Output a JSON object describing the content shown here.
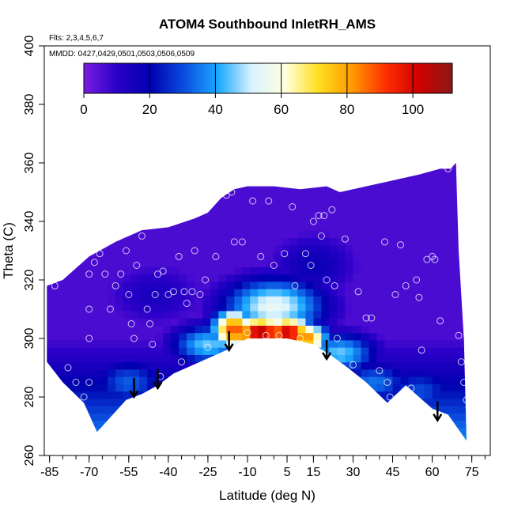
{
  "chart_data": {
    "type": "heatmap",
    "title": "ATOM4 Southbound InletRH_AMS",
    "subtitle_flights": "Flts: 2,3,4,5,6,7",
    "subtitle_dates": "MMDD: 0427,0429,0501,0503,0506,0509",
    "xlabel": "Latitude (deg N)",
    "ylabel": "Theta (C)",
    "xlim": [
      -87,
      82
    ],
    "ylim": [
      260,
      400
    ],
    "x_ticks": [
      -85,
      -70,
      -55,
      -40,
      -25,
      -10,
      5,
      15,
      30,
      45,
      60,
      75
    ],
    "y_ticks": [
      260,
      280,
      300,
      320,
      340,
      360,
      380,
      400
    ],
    "colorbar": {
      "range": [
        0,
        112
      ],
      "ticks": [
        0,
        20,
        40,
        60,
        80,
        100
      ],
      "colors": [
        "#7a1ce0",
        "#2a00c8",
        "#0000b0",
        "#0a4fe0",
        "#1aa8ff",
        "#d8f2ff",
        "#ffffe0",
        "#ffdf20",
        "#ff9a00",
        "#ff3000",
        "#d00000",
        "#8a1818"
      ]
    },
    "field_top_boundary": [
      [
        -86,
        318
      ],
      [
        -80,
        320
      ],
      [
        -70,
        328
      ],
      [
        -60,
        333
      ],
      [
        -50,
        337
      ],
      [
        -40,
        338
      ],
      [
        -30,
        341
      ],
      [
        -25,
        343
      ],
      [
        -20,
        348
      ],
      [
        -15,
        351
      ],
      [
        -10,
        352
      ],
      [
        0,
        352
      ],
      [
        10,
        351
      ],
      [
        20,
        352
      ],
      [
        25,
        350
      ],
      [
        35,
        352
      ],
      [
        45,
        354
      ],
      [
        55,
        356
      ],
      [
        63,
        358
      ],
      [
        67,
        358
      ],
      [
        69,
        360
      ],
      [
        70,
        330
      ],
      [
        72,
        300
      ],
      [
        73,
        265
      ]
    ],
    "field_bottom_boundary": [
      [
        73,
        265
      ],
      [
        66,
        274
      ],
      [
        60,
        276
      ],
      [
        50,
        284
      ],
      [
        43,
        278
      ],
      [
        35,
        285
      ],
      [
        28,
        290
      ],
      [
        22,
        294
      ],
      [
        15,
        298
      ],
      [
        5,
        300
      ],
      [
        -10,
        300
      ],
      [
        -18,
        296
      ],
      [
        -28,
        292
      ],
      [
        -38,
        288
      ],
      [
        -44,
        284
      ],
      [
        -50,
        281
      ],
      [
        -56,
        279
      ],
      [
        -60,
        275
      ],
      [
        -67,
        268
      ],
      [
        -72,
        278
      ],
      [
        -80,
        285
      ],
      [
        -86,
        292
      ]
    ],
    "rh_features": [
      {
        "lat": -5,
        "theta": 302,
        "rh": 108,
        "spread_lat": 8,
        "spread_theta": 4
      },
      {
        "lat": 5,
        "theta": 302,
        "rh": 105,
        "spread_lat": 7,
        "spread_theta": 4
      },
      {
        "lat": -15,
        "theta": 303,
        "rh": 90,
        "spread_lat": 6,
        "spread_theta": 5
      },
      {
        "lat": 12,
        "theta": 300,
        "rh": 85,
        "spread_lat": 6,
        "spread_theta": 4
      },
      {
        "lat": 0,
        "theta": 311,
        "rh": 55,
        "spread_lat": 14,
        "spread_theta": 7
      },
      {
        "lat": -25,
        "theta": 298,
        "rh": 45,
        "spread_lat": 10,
        "spread_theta": 5
      },
      {
        "lat": 25,
        "theta": 295,
        "rh": 45,
        "spread_lat": 10,
        "spread_theta": 5
      },
      {
        "lat": 38,
        "theta": 285,
        "rh": 35,
        "spread_lat": 10,
        "spread_theta": 5
      },
      {
        "lat": -55,
        "theta": 285,
        "rh": 32,
        "spread_lat": 10,
        "spread_theta": 6
      },
      {
        "lat": 55,
        "theta": 282,
        "rh": 30,
        "spread_lat": 10,
        "spread_theta": 6
      },
      {
        "lat": 15,
        "theta": 325,
        "rh": 18,
        "spread_lat": 12,
        "spread_theta": 8
      },
      {
        "lat": -45,
        "theta": 315,
        "rh": 14,
        "spread_lat": 14,
        "spread_theta": 8
      }
    ],
    "sample_points": [
      [
        -83,
        318
      ],
      [
        -78,
        290
      ],
      [
        -75,
        285
      ],
      [
        -72,
        280
      ],
      [
        -70,
        285
      ],
      [
        -70,
        300
      ],
      [
        -70,
        310
      ],
      [
        -70,
        322
      ],
      [
        -68,
        326
      ],
      [
        -66,
        329
      ],
      [
        -64,
        322
      ],
      [
        -62,
        310
      ],
      [
        -60,
        318
      ],
      [
        -58,
        322
      ],
      [
        -56,
        330
      ],
      [
        -55,
        315
      ],
      [
        -54,
        305
      ],
      [
        -53,
        300
      ],
      [
        -52,
        325
      ],
      [
        -50,
        335
      ],
      [
        -48,
        310
      ],
      [
        -47,
        305
      ],
      [
        -46,
        298
      ],
      [
        -45,
        315
      ],
      [
        -44,
        322
      ],
      [
        -43,
        287
      ],
      [
        -42,
        323
      ],
      [
        -40,
        315
      ],
      [
        -38,
        316
      ],
      [
        -36,
        328
      ],
      [
        -35,
        292
      ],
      [
        -34,
        316
      ],
      [
        -33,
        312
      ],
      [
        -31,
        316
      ],
      [
        -30,
        330
      ],
      [
        -28,
        315
      ],
      [
        -26,
        320
      ],
      [
        -25,
        297
      ],
      [
        -22,
        328
      ],
      [
        -18,
        349
      ],
      [
        -16,
        350
      ],
      [
        -15,
        333
      ],
      [
        -12,
        333
      ],
      [
        -10,
        302
      ],
      [
        -8,
        347
      ],
      [
        -5,
        328
      ],
      [
        -3,
        301
      ],
      [
        -2,
        347
      ],
      [
        0,
        325
      ],
      [
        2,
        301
      ],
      [
        4,
        329
      ],
      [
        7,
        345
      ],
      [
        8,
        318
      ],
      [
        10,
        300
      ],
      [
        12,
        329
      ],
      [
        14,
        325
      ],
      [
        15,
        340
      ],
      [
        17,
        342
      ],
      [
        18,
        335
      ],
      [
        19,
        342
      ],
      [
        20,
        320
      ],
      [
        22,
        344
      ],
      [
        23,
        318
      ],
      [
        24,
        300
      ],
      [
        27,
        334
      ],
      [
        30,
        291
      ],
      [
        32,
        316
      ],
      [
        35,
        307
      ],
      [
        37,
        307
      ],
      [
        40,
        289
      ],
      [
        42,
        333
      ],
      [
        43,
        285
      ],
      [
        44,
        280
      ],
      [
        46,
        315
      ],
      [
        48,
        332
      ],
      [
        50,
        318
      ],
      [
        52,
        283
      ],
      [
        54,
        320
      ],
      [
        55,
        314
      ],
      [
        56,
        296
      ],
      [
        58,
        327
      ],
      [
        60,
        328
      ],
      [
        61,
        327
      ],
      [
        63,
        306
      ],
      [
        66,
        358
      ],
      [
        70,
        301
      ],
      [
        71,
        292
      ],
      [
        72,
        285
      ],
      [
        73,
        279
      ]
    ],
    "arrows": [
      [
        -53,
        280
      ],
      [
        -44,
        283
      ],
      [
        -17,
        296
      ],
      [
        20,
        293
      ],
      [
        62,
        272
      ]
    ]
  }
}
